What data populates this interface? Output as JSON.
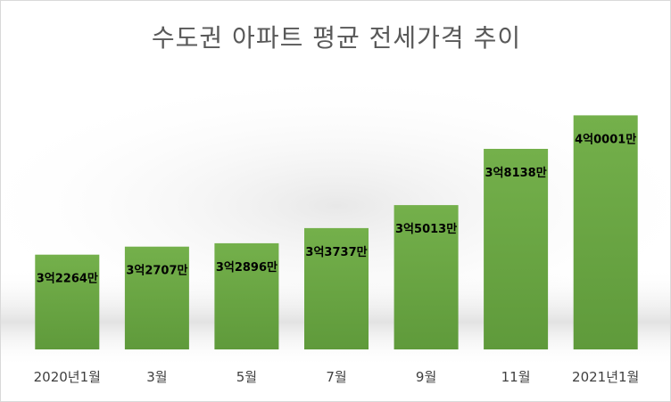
{
  "chart_data": {
    "type": "bar",
    "title": "수도권 아파트 평균 전세가격 추이",
    "categories": [
      "2020년1월",
      "3월",
      "5월",
      "7월",
      "9월",
      "11월",
      "2021년1월"
    ],
    "values": [
      32264,
      32707,
      32896,
      33737,
      35013,
      38138,
      40001
    ],
    "value_unit": "만원",
    "data_labels": [
      "3억2264만",
      "3억2707만",
      "3억2896만",
      "3억3737만",
      "3억5013만",
      "3억8138만",
      "4억0001만"
    ],
    "xlabel": "",
    "ylabel": "",
    "ylim": [
      27000,
      42000
    ],
    "grid": false,
    "legend": "none",
    "colors": {
      "bar_top": "#74b04b",
      "bar_bottom": "#5f9a3b",
      "label": "#000000",
      "tick": "#404040",
      "title": "#595959"
    }
  }
}
